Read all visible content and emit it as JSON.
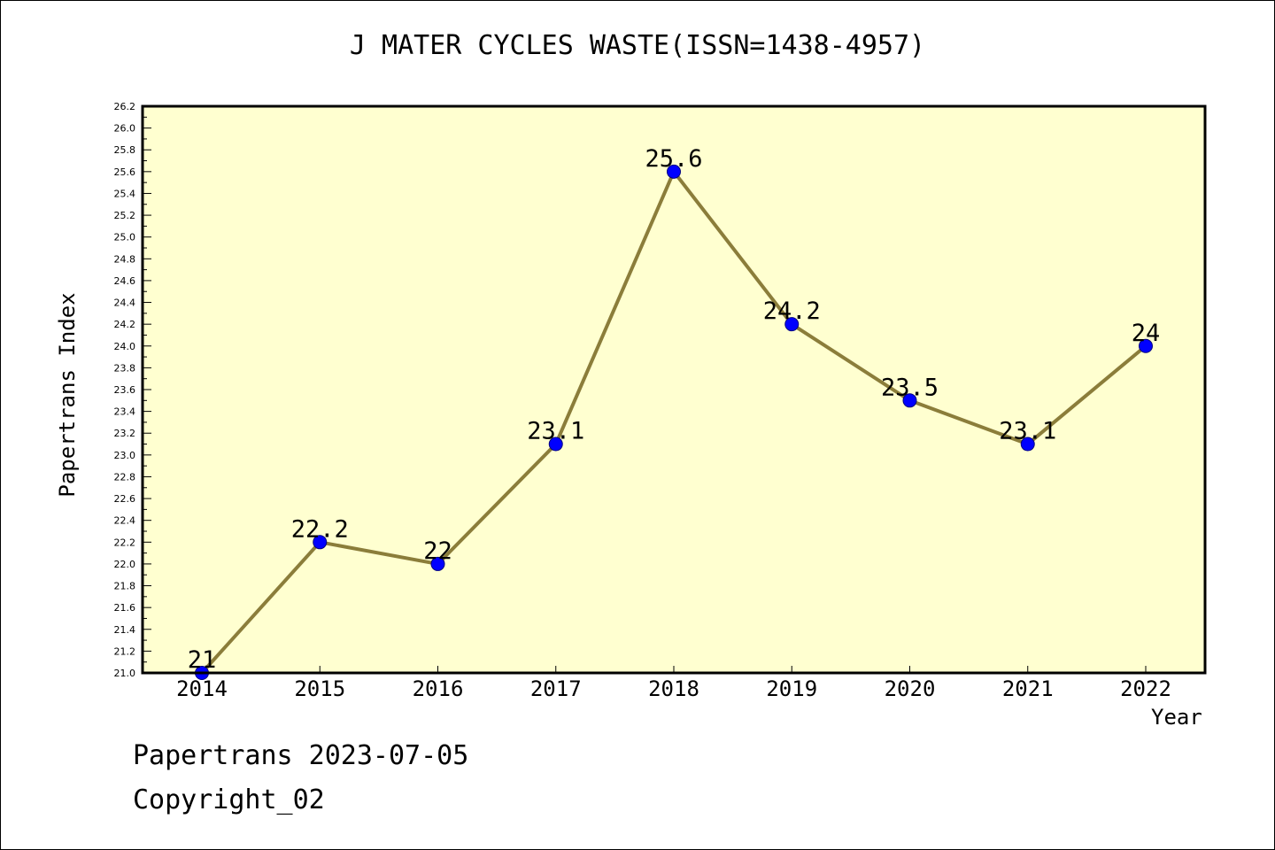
{
  "chart_data": {
    "type": "line",
    "title": "J MATER CYCLES WASTE(ISSN=1438-4957)",
    "xlabel": "Year",
    "ylabel": "Papertrans Index",
    "categories": [
      "2014",
      "2015",
      "2016",
      "2017",
      "2018",
      "2019",
      "2020",
      "2021",
      "2022"
    ],
    "series": [
      {
        "values": [
          21,
          22.2,
          22,
          23.1,
          25.6,
          24.2,
          23.5,
          23.1,
          24
        ],
        "data_labels": [
          "21",
          "22.2",
          "22",
          "23.1",
          "25.6",
          "24.2",
          "23.5",
          "23.1",
          "24"
        ]
      }
    ],
    "ylim": [
      21.0,
      26.2
    ],
    "yticks": [
      "21.0",
      "21.2",
      "21.4",
      "21.6",
      "21.8",
      "22.0",
      "22.2",
      "22.4",
      "22.6",
      "22.8",
      "23.0",
      "23.2",
      "23.4",
      "23.6",
      "23.8",
      "24.0",
      "24.2",
      "24.4",
      "24.6",
      "24.8",
      "25.0",
      "25.2",
      "25.4",
      "25.6",
      "25.8",
      "26.0",
      "26.2"
    ],
    "grid": false,
    "colors": {
      "plot_background": "#ffffd0",
      "line": "#8b7d3a",
      "marker": "#0000ff",
      "marker_edge": "#000080"
    }
  },
  "footer": {
    "line1": "Papertrans 2023-07-05",
    "line2": "Copyright_02"
  }
}
